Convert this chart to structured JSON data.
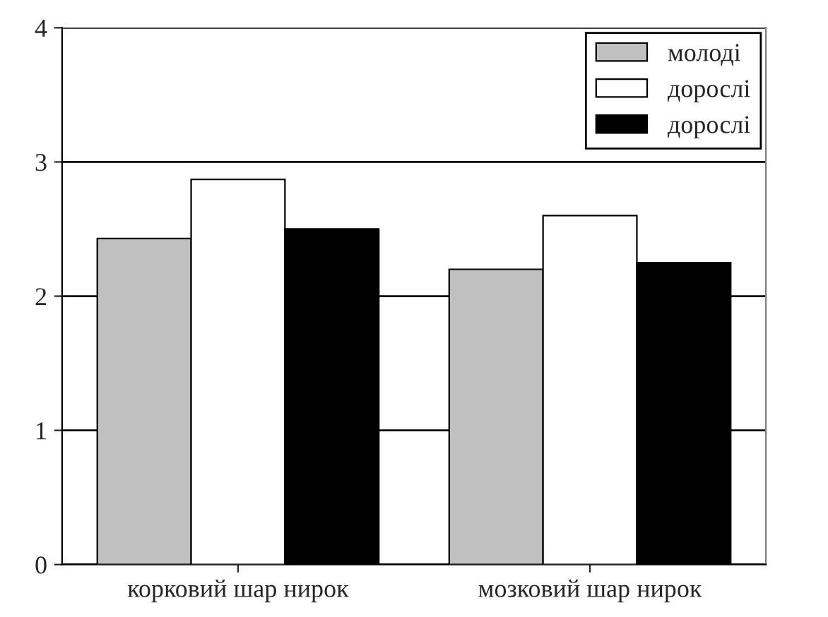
{
  "chart_data": {
    "type": "bar",
    "categories": [
      "корковий шар нирок",
      "мозковий шар нирок"
    ],
    "series": [
      {
        "name": "молоді",
        "color": "#c0c0c0",
        "values": [
          2.43,
          2.2
        ]
      },
      {
        "name": "дорослі",
        "color": "#ffffff",
        "values": [
          2.87,
          2.6
        ]
      },
      {
        "name": "дорослі",
        "color": "#000000",
        "values": [
          2.5,
          2.25
        ]
      }
    ],
    "ylim": [
      0,
      4
    ],
    "yticks": [
      0,
      1,
      2,
      3,
      4
    ],
    "grid": "y",
    "legend": "top right"
  }
}
